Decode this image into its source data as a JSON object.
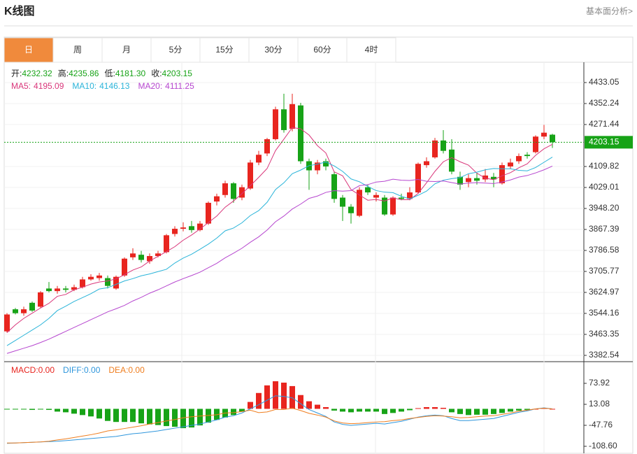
{
  "header": {
    "title": "K线图",
    "link": "基本面分析>"
  },
  "tabs": [
    "日",
    "周",
    "月",
    "5分",
    "15分",
    "30分",
    "60分",
    "4时"
  ],
  "active_tab": 0,
  "chart_data": [
    {
      "type": "candlestick",
      "info": [
        {
          "name": "开:",
          "value": 4232.32
        },
        {
          "name": "高:",
          "value": 4235.86
        },
        {
          "name": "低:",
          "value": 4181.3,
          "value_label": "4181.30"
        },
        {
          "name": "收:",
          "value": 4203.15
        }
      ],
      "up_color": "#e8251f",
      "down_color": "#17a317",
      "info_color": "#17a317",
      "open": [
        3475,
        3560,
        3545,
        3585,
        3570,
        3640,
        3630,
        3640,
        3635,
        3645,
        3675,
        3680,
        3680,
        3640,
        3690,
        3760,
        3770,
        3745,
        3765,
        3780,
        3850,
        3870,
        3880,
        3865,
        3890,
        3975,
        4000,
        4045,
        3990,
        4025,
        4125,
        4160,
        4215,
        4330,
        4255,
        4345,
        4130,
        4095,
        4130,
        4080,
        3990,
        3955,
        3920,
        4030,
        3990,
        3990,
        3925,
        3990,
        3985,
        4010,
        4115,
        4145,
        4210,
        4175,
        4070,
        4050,
        4065,
        4060,
        4070,
        4045,
        4110,
        4130,
        4155,
        4165,
        4225,
        4232.32
      ],
      "high": [
        3545,
        3565,
        3570,
        3590,
        3630,
        3665,
        3650,
        3650,
        3655,
        3685,
        3695,
        3700,
        3690,
        3690,
        3760,
        3795,
        3785,
        3775,
        3785,
        3850,
        3880,
        3895,
        3900,
        3900,
        3975,
        4005,
        4055,
        4050,
        4040,
        4135,
        4170,
        4220,
        4340,
        4390,
        4390,
        4355,
        4140,
        4135,
        4140,
        4090,
        4000,
        3965,
        4030,
        4040,
        4010,
        4000,
        3995,
        4005,
        4030,
        4125,
        4145,
        4220,
        4250,
        4215,
        4090,
        4080,
        4085,
        4100,
        4085,
        4125,
        4140,
        4160,
        4165,
        4230,
        4270,
        4235.86
      ],
      "low": [
        3470,
        3540,
        3535,
        3550,
        3565,
        3625,
        3620,
        3625,
        3630,
        3640,
        3670,
        3670,
        3640,
        3635,
        3685,
        3750,
        3740,
        3735,
        3760,
        3775,
        3840,
        3860,
        3855,
        3860,
        3885,
        3960,
        3990,
        3970,
        3980,
        4020,
        4115,
        4150,
        4210,
        4240,
        4245,
        4120,
        4020,
        4080,
        4095,
        3970,
        3900,
        3890,
        3915,
        4000,
        3975,
        3920,
        3920,
        3980,
        3980,
        4005,
        4105,
        4140,
        4160,
        4080,
        4020,
        4030,
        4040,
        4050,
        4030,
        4040,
        4100,
        4120,
        4140,
        4160,
        4215,
        4181.3
      ],
      "close": [
        3540,
        3545,
        3560,
        3555,
        3625,
        3630,
        3640,
        3635,
        3645,
        3675,
        3685,
        3690,
        3650,
        3685,
        3755,
        3775,
        3750,
        3765,
        3775,
        3845,
        3870,
        3875,
        3865,
        3890,
        3970,
        3995,
        4045,
        3985,
        4030,
        4125,
        4155,
        4215,
        4330,
        4250,
        4350,
        4130,
        4095,
        4125,
        4110,
        3985,
        3955,
        3930,
        4020,
        4010,
        4000,
        3925,
        3990,
        3985,
        4010,
        4120,
        4130,
        4210,
        4170,
        4090,
        4040,
        4065,
        4055,
        4075,
        4060,
        4115,
        4125,
        4150,
        4150,
        4225,
        4240,
        4203.15
      ],
      "series": [
        {
          "name": "MA5:",
          "color": "#d9367a",
          "values": [
            3470,
            3500,
            3525,
            3545,
            3565,
            3583,
            3610,
            3617,
            3635,
            3645,
            3657,
            3665,
            3669,
            3677,
            3693,
            3711,
            3723,
            3746,
            3764,
            3782,
            3801,
            3826,
            3846,
            3869,
            3894,
            3919,
            3953,
            3977,
            4005,
            4036,
            4068,
            4102,
            4171,
            4215,
            4260,
            4255,
            4231,
            4190,
            4162,
            4089,
            4074,
            4021,
            4000,
            3980,
            3983,
            3977,
            3989,
            3982,
            3982,
            4006,
            4047,
            4091,
            4128,
            4144,
            4128,
            4115,
            4084,
            4065,
            4059,
            4074,
            4086,
            4105,
            4120,
            4153,
            4178,
            4195.09
          ]
        },
        {
          "name": "MA10:",
          "color": "#2ab4d9",
          "values": [
            3420,
            3440,
            3460,
            3480,
            3500,
            3525,
            3555,
            3572,
            3590,
            3605,
            3620,
            3638,
            3643,
            3656,
            3669,
            3678,
            3689,
            3696,
            3705,
            3714,
            3738,
            3757,
            3772,
            3791,
            3811,
            3834,
            3862,
            3873,
            3893,
            3921,
            3940,
            3972,
            4021,
            4047,
            4082,
            4096,
            4113,
            4119,
            4127,
            4112,
            4091,
            4062,
            4051,
            4033,
            4017,
            4011,
            4009,
            3995,
            3985,
            3999,
            4015,
            4043,
            4057,
            4063,
            4067,
            4082,
            4088,
            4097,
            4102,
            4101,
            4101,
            4095,
            4093,
            4106,
            4126,
            4146.13
          ]
        },
        {
          "name": "MA20:",
          "color": "#b646cf",
          "values": [
            3390,
            3400,
            3410,
            3420,
            3432,
            3445,
            3460,
            3475,
            3490,
            3505,
            3520,
            3535,
            3550,
            3562,
            3575,
            3592,
            3606,
            3622,
            3635,
            3650,
            3665,
            3678,
            3690,
            3703,
            3720,
            3737,
            3758,
            3776,
            3795,
            3818,
            3839,
            3865,
            3897,
            3919,
            3946,
            3965,
            3987,
            3996,
            4010,
            4017,
            4015,
            4017,
            4036,
            4040,
            4050,
            4053,
            4061,
            4057,
            4056,
            4060,
            4053,
            4052,
            4054,
            4048,
            4042,
            4046,
            4048,
            4046,
            4044,
            4050,
            4058,
            4069,
            4075,
            4085,
            4097,
            4111.25
          ]
        }
      ],
      "ylim": [
        3363.68,
        4508.47
      ],
      "yticks": [
        3382.54,
        3463.35,
        3544.16,
        3624.97,
        3705.77,
        3786.58,
        3867.39,
        {
          "value": 3948.2,
          "label": "3948.20"
        },
        4029.01,
        4109.82,
        4271.44,
        4352.24,
        4433.05
      ],
      "grid": true
    },
    {
      "type": "macd",
      "histogram": {
        "name": "MACD:",
        "latest": {
          "value": 0,
          "label": "0.00"
        },
        "up_color": "#e8251f",
        "down_color": "#17a317",
        "values": [
          -2,
          -2,
          -2,
          -3,
          -2,
          -3,
          -8,
          -10,
          -14,
          -18,
          -22,
          -28,
          -35,
          -38,
          -38,
          -38,
          -42,
          -45,
          -47,
          -50,
          -52,
          -56,
          -54,
          -48,
          -40,
          -32,
          -25,
          -18,
          -8,
          20,
          46,
          68,
          80,
          76,
          66,
          40,
          22,
          12,
          5,
          -5,
          -8,
          -10,
          -8,
          -8,
          -8,
          -15,
          -12,
          -8,
          -4,
          2,
          5,
          5,
          3,
          -10,
          -15,
          -18,
          -17,
          -17,
          -15,
          -12,
          -8,
          -5,
          -3,
          0,
          2,
          0
        ]
      },
      "series": [
        {
          "name": "DIFF:",
          "color": "#2f96dc",
          "latest": {
            "value": 0,
            "label": "0.00"
          },
          "values": [
            -100,
            -99,
            -98,
            -97,
            -96,
            -95,
            -94,
            -92,
            -90,
            -88,
            -86,
            -84,
            -82,
            -80,
            -76,
            -72,
            -70,
            -67,
            -64,
            -60,
            -56,
            -52,
            -48,
            -44,
            -38,
            -32,
            -24,
            -20,
            -12,
            0,
            12,
            25,
            38,
            36,
            32,
            15,
            -2,
            -12,
            -22,
            -38,
            -45,
            -48,
            -46,
            -44,
            -42,
            -44,
            -40,
            -36,
            -30,
            -24,
            -20,
            -18,
            -20,
            -28,
            -34,
            -34,
            -32,
            -30,
            -28,
            -22,
            -16,
            -10,
            -6,
            0,
            3,
            0
          ]
        },
        {
          "name": "DEA:",
          "color": "#ef7d1e",
          "latest": {
            "value": 0,
            "label": "0.00"
          },
          "values": [
            -99,
            -99,
            -98,
            -97,
            -96,
            -94,
            -90,
            -87,
            -83,
            -79,
            -75,
            -70,
            -64,
            -61,
            -57,
            -53,
            -49,
            -44,
            -40,
            -35,
            -31,
            -26,
            -23,
            -21,
            -19,
            -17,
            -12,
            -11,
            -8,
            -4,
            -11,
            -9,
            -2,
            -2,
            2,
            -5,
            -13,
            -18,
            -24,
            -35,
            -41,
            -43,
            -42,
            -40,
            -38,
            -37,
            -34,
            -32,
            -28,
            -25,
            -22,
            -20,
            -21,
            -23,
            -26,
            -25,
            -23,
            -21,
            -20,
            -16,
            -12,
            -7,
            -4,
            0,
            2,
            0
          ]
        }
      ],
      "ylim": [
        -128.88,
        134.76
      ],
      "yticks": [
        {
          "value": -108.6,
          "label": "-108.60"
        },
        -47.76,
        13.08,
        73.92
      ]
    }
  ]
}
